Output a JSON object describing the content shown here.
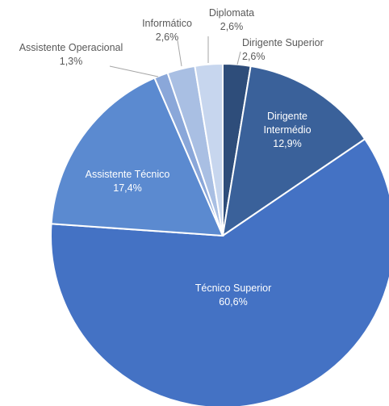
{
  "chart_data": {
    "type": "pie",
    "title": "",
    "slices": [
      {
        "label": "Dirigente Superior",
        "display_label": "Dirigente Superior",
        "value": 2.6,
        "value_label": "2,6%",
        "color": "#2e4d7a"
      },
      {
        "label": "Dirigente Intermédio",
        "display_label": "Dirigente Intermédio",
        "value": 12.9,
        "value_label": "12,9%",
        "color": "#3a619a"
      },
      {
        "label": "Técnico Superior",
        "display_label": "Técnico Superior",
        "value": 60.6,
        "value_label": "60,6%",
        "color": "#4472c4"
      },
      {
        "label": "Assistente Técnico",
        "display_label": "Assistente Técnico",
        "value": 17.4,
        "value_label": "17,4%",
        "color": "#5b8ad0"
      },
      {
        "label": "Assistente Operacional",
        "display_label": "Assistente Operacional",
        "value": 1.3,
        "value_label": "1,3%",
        "color": "#8aa7d9"
      },
      {
        "label": "Informático",
        "display_label": "Informático",
        "value": 2.6,
        "value_label": "2,6%",
        "color": "#a9bfe3"
      },
      {
        "label": "Diplomata",
        "display_label": "Diplomata",
        "value": 2.6,
        "value_label": "2,6%",
        "color": "#c7d6ee"
      }
    ]
  }
}
